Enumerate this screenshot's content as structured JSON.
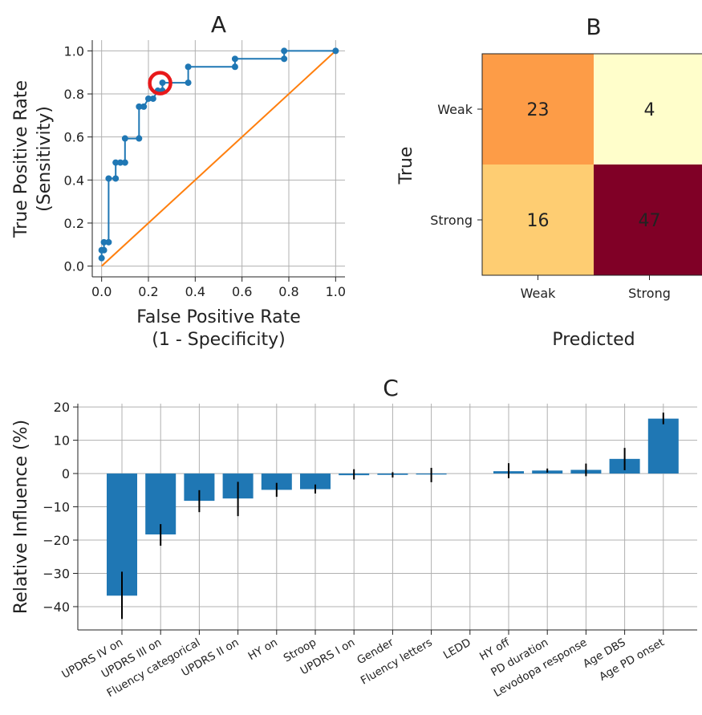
{
  "chart_data": [
    {
      "type": "line",
      "panel": "A",
      "title": "A",
      "xlabel": [
        "False Positive Rate",
        "(1 - Specificity)"
      ],
      "ylabel": [
        "True Positive Rate",
        "(Sensitivity)"
      ],
      "xlim": [
        -0.04,
        1.04
      ],
      "ylim": [
        -0.05,
        1.05
      ],
      "xticks": [
        "0.0",
        "0.2",
        "0.4",
        "0.6",
        "0.8",
        "1.0"
      ],
      "yticks": [
        "0.0",
        "0.2",
        "0.4",
        "0.6",
        "0.8",
        "1.0"
      ],
      "grid": true,
      "series": [
        {
          "role": "roc",
          "color": "#1f77b4",
          "x": [
            0.0,
            0.0,
            0.01,
            0.01,
            0.03,
            0.03,
            0.06,
            0.06,
            0.08,
            0.1,
            0.1,
            0.16,
            0.16,
            0.18,
            0.2,
            0.22,
            0.24,
            0.26,
            0.26,
            0.37,
            0.37,
            0.57,
            0.57,
            0.78,
            0.78,
            1.0
          ],
          "y": [
            0.037,
            0.074,
            0.074,
            0.111,
            0.111,
            0.407,
            0.407,
            0.481,
            0.481,
            0.481,
            0.593,
            0.593,
            0.741,
            0.741,
            0.778,
            0.778,
            0.815,
            0.815,
            0.852,
            0.852,
            0.926,
            0.926,
            0.963,
            0.963,
            1.0,
            1.0
          ],
          "markers": true
        },
        {
          "role": "chance",
          "color": "#ff7f0e",
          "x": [
            0.0,
            1.0
          ],
          "y": [
            0.0,
            1.0
          ],
          "markers": false
        }
      ],
      "highlight": {
        "x": 0.25,
        "y": 0.85,
        "color": "#e8191b"
      }
    },
    {
      "type": "heatmap",
      "panel": "B",
      "title": "B",
      "xlabel": "Predicted",
      "ylabel": "True",
      "x_categories": [
        "Weak",
        "Strong"
      ],
      "y_categories": [
        "Weak",
        "Strong"
      ],
      "values": [
        [
          23,
          4
        ],
        [
          16,
          47
        ]
      ],
      "colors": [
        [
          "#fd9c47",
          "#fffecb"
        ],
        [
          "#fecd72",
          "#800026"
        ]
      ],
      "value_labels": [
        [
          "23",
          "4"
        ],
        [
          "16",
          "47"
        ]
      ]
    },
    {
      "type": "bar",
      "panel": "C",
      "title": "C",
      "xlabel": "",
      "ylabel": "Relative Influence (%)",
      "ylim": [
        -47,
        21
      ],
      "yticks": [
        "20",
        "10",
        "0",
        "−10",
        "−20",
        "−30",
        "−40"
      ],
      "grid": true,
      "bar_color": "#1f77b4",
      "categories": [
        "UPDRS IV on",
        "UPDRS III on",
        "Fluency categorical",
        "UPDRS II on",
        "HY on",
        "Stroop",
        "UPDRS I on",
        "Gender",
        "Fluency letters",
        "LEDD",
        "HY off",
        "PD duration",
        "Levodopa response",
        "Age DBS",
        "Age PD onset"
      ],
      "values": [
        -36.7,
        -18.3,
        -8.2,
        -7.5,
        -4.9,
        -4.7,
        -0.5,
        -0.4,
        -0.3,
        0.0,
        0.7,
        0.9,
        1.1,
        4.4,
        16.5
      ],
      "error_low": [
        -43.7,
        -21.7,
        -11.6,
        -12.8,
        -7.0,
        -6.0,
        -1.8,
        -1.2,
        -2.6,
        0.0,
        -1.4,
        0.3,
        -0.8,
        1.0,
        14.8
      ],
      "error_high": [
        -29.5,
        -15.2,
        -5.0,
        -2.5,
        -2.8,
        -3.3,
        1.3,
        0.4,
        1.7,
        0.0,
        3.1,
        1.5,
        3.0,
        7.7,
        18.3
      ]
    }
  ]
}
